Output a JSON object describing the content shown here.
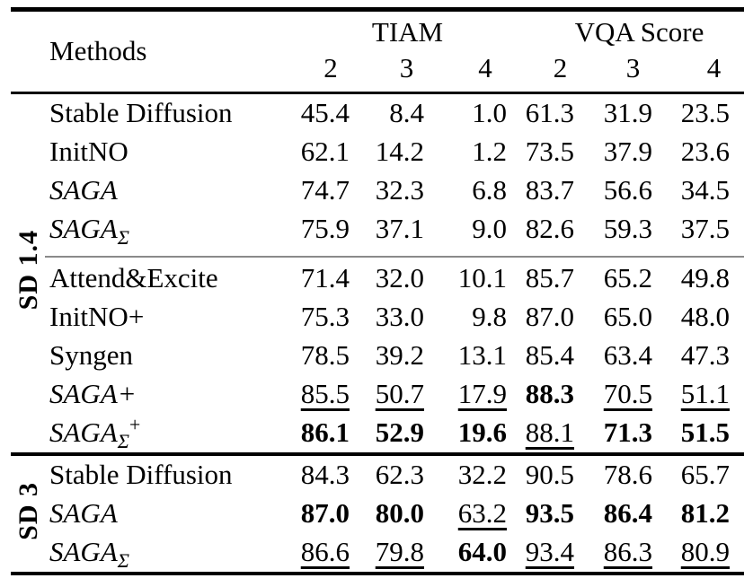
{
  "header": {
    "methods": "Methods",
    "tiam": "TIAM",
    "vqa": "VQA Score",
    "subcols": [
      "2",
      "3",
      "4",
      "2",
      "3",
      "4"
    ]
  },
  "colors": {
    "text": "#000000",
    "rule": "#000000",
    "subgroup_divider": "#8a8a8a",
    "background": "#ffffff"
  },
  "groups": [
    {
      "label": "SD 1.4",
      "subgroups": [
        {
          "rows": [
            {
              "method": {
                "name": "Stable Diffusion",
                "italic": false,
                "sub": "",
                "sup": ""
              },
              "values": [
                {
                  "text": "45.4",
                  "style": "plain"
                },
                {
                  "text": "8.4",
                  "style": "plain"
                },
                {
                  "text": "1.0",
                  "style": "plain"
                },
                {
                  "text": "61.3",
                  "style": "plain"
                },
                {
                  "text": "31.9",
                  "style": "plain"
                },
                {
                  "text": "23.5",
                  "style": "plain"
                }
              ]
            },
            {
              "method": {
                "name": "InitNO",
                "italic": false,
                "sub": "",
                "sup": ""
              },
              "values": [
                {
                  "text": "62.1",
                  "style": "plain"
                },
                {
                  "text": "14.2",
                  "style": "plain"
                },
                {
                  "text": "1.2",
                  "style": "plain"
                },
                {
                  "text": "73.5",
                  "style": "plain"
                },
                {
                  "text": "37.9",
                  "style": "plain"
                },
                {
                  "text": "23.6",
                  "style": "plain"
                }
              ]
            },
            {
              "method": {
                "name": "SAGA",
                "italic": true,
                "sub": "",
                "sup": ""
              },
              "values": [
                {
                  "text": "74.7",
                  "style": "plain"
                },
                {
                  "text": "32.3",
                  "style": "plain"
                },
                {
                  "text": "6.8",
                  "style": "plain"
                },
                {
                  "text": "83.7",
                  "style": "plain"
                },
                {
                  "text": "56.6",
                  "style": "plain"
                },
                {
                  "text": "34.5",
                  "style": "plain"
                }
              ]
            },
            {
              "method": {
                "name": "SAGA",
                "italic": true,
                "sub": "Σ",
                "sup": ""
              },
              "values": [
                {
                  "text": "75.9",
                  "style": "plain"
                },
                {
                  "text": "37.1",
                  "style": "plain"
                },
                {
                  "text": "9.0",
                  "style": "plain"
                },
                {
                  "text": "82.6",
                  "style": "plain"
                },
                {
                  "text": "59.3",
                  "style": "plain"
                },
                {
                  "text": "37.5",
                  "style": "plain"
                }
              ]
            }
          ]
        },
        {
          "rows": [
            {
              "method": {
                "name": "Attend&Excite",
                "italic": false,
                "sub": "",
                "sup": ""
              },
              "values": [
                {
                  "text": "71.4",
                  "style": "plain"
                },
                {
                  "text": "32.0",
                  "style": "plain"
                },
                {
                  "text": "10.1",
                  "style": "plain"
                },
                {
                  "text": "85.7",
                  "style": "plain"
                },
                {
                  "text": "65.2",
                  "style": "plain"
                },
                {
                  "text": "49.8",
                  "style": "plain"
                }
              ]
            },
            {
              "method": {
                "name": "InitNO+",
                "italic": false,
                "sub": "",
                "sup": ""
              },
              "values": [
                {
                  "text": "75.3",
                  "style": "plain"
                },
                {
                  "text": "33.0",
                  "style": "plain"
                },
                {
                  "text": "9.8",
                  "style": "plain"
                },
                {
                  "text": "87.0",
                  "style": "plain"
                },
                {
                  "text": "65.0",
                  "style": "plain"
                },
                {
                  "text": "48.0",
                  "style": "plain"
                }
              ]
            },
            {
              "method": {
                "name": "Syngen",
                "italic": false,
                "sub": "",
                "sup": ""
              },
              "values": [
                {
                  "text": "78.5",
                  "style": "plain"
                },
                {
                  "text": "39.2",
                  "style": "plain"
                },
                {
                  "text": "13.1",
                  "style": "plain"
                },
                {
                  "text": "85.4",
                  "style": "plain"
                },
                {
                  "text": "63.4",
                  "style": "plain"
                },
                {
                  "text": "47.3",
                  "style": "plain"
                }
              ]
            },
            {
              "method": {
                "name": "SAGA+",
                "italic": true,
                "sub": "",
                "sup": ""
              },
              "values": [
                {
                  "text": "85.5",
                  "style": "underline"
                },
                {
                  "text": "50.7",
                  "style": "underline"
                },
                {
                  "text": "17.9",
                  "style": "underline"
                },
                {
                  "text": "88.3",
                  "style": "bold"
                },
                {
                  "text": "70.5",
                  "style": "underline"
                },
                {
                  "text": "51.1",
                  "style": "underline"
                }
              ]
            },
            {
              "method": {
                "name": "SAGA",
                "italic": true,
                "sub": "Σ",
                "sup": "+"
              },
              "values": [
                {
                  "text": "86.1",
                  "style": "bold"
                },
                {
                  "text": "52.9",
                  "style": "bold"
                },
                {
                  "text": "19.6",
                  "style": "bold"
                },
                {
                  "text": "88.1",
                  "style": "underline"
                },
                {
                  "text": "71.3",
                  "style": "bold"
                },
                {
                  "text": "51.5",
                  "style": "bold"
                }
              ]
            }
          ]
        }
      ]
    },
    {
      "label": "SD 3",
      "subgroups": [
        {
          "rows": [
            {
              "method": {
                "name": "Stable Diffusion",
                "italic": false,
                "sub": "",
                "sup": ""
              },
              "values": [
                {
                  "text": "84.3",
                  "style": "plain"
                },
                {
                  "text": "62.3",
                  "style": "plain"
                },
                {
                  "text": "32.2",
                  "style": "plain"
                },
                {
                  "text": "90.5",
                  "style": "plain"
                },
                {
                  "text": "78.6",
                  "style": "plain"
                },
                {
                  "text": "65.7",
                  "style": "plain"
                }
              ]
            },
            {
              "method": {
                "name": "SAGA",
                "italic": true,
                "sub": "",
                "sup": ""
              },
              "values": [
                {
                  "text": "87.0",
                  "style": "bold"
                },
                {
                  "text": "80.0",
                  "style": "bold"
                },
                {
                  "text": "63.2",
                  "style": "underline"
                },
                {
                  "text": "93.5",
                  "style": "bold"
                },
                {
                  "text": "86.4",
                  "style": "bold"
                },
                {
                  "text": "81.2",
                  "style": "bold"
                }
              ]
            },
            {
              "method": {
                "name": "SAGA",
                "italic": true,
                "sub": "Σ",
                "sup": ""
              },
              "values": [
                {
                  "text": "86.6",
                  "style": "underline"
                },
                {
                  "text": "79.8",
                  "style": "underline"
                },
                {
                  "text": "64.0",
                  "style": "bold"
                },
                {
                  "text": "93.4",
                  "style": "underline"
                },
                {
                  "text": "86.3",
                  "style": "underline"
                },
                {
                  "text": "80.9",
                  "style": "underline"
                }
              ]
            }
          ]
        }
      ]
    }
  ]
}
